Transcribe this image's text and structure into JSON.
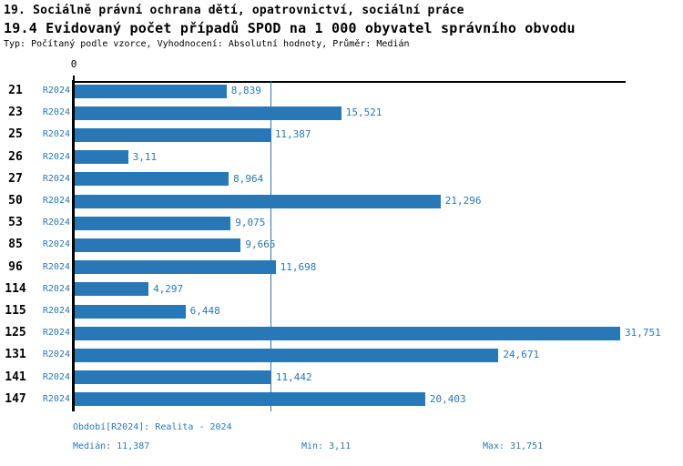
{
  "header": {
    "title_line1": "19. Sociálně právní ochrana dětí, opatrovnictví, sociální práce",
    "title_line2": "19.4 Evidovaný počet případů SPOD na 1 000 obyvatel správního obvodu",
    "subtitle": "Typ: Počítaný podle vzorce, Vyhodnocení: Absolutní hodnoty, Průměr: Medián"
  },
  "chart_data": {
    "type": "bar",
    "orientation": "horizontal",
    "title": "19.4 Evidovaný počet případů SPOD na 1 000 obyvatel správního obvodu",
    "series_label": "R2024",
    "categories": [
      "21",
      "23",
      "25",
      "26",
      "27",
      "50",
      "53",
      "85",
      "96",
      "114",
      "115",
      "125",
      "131",
      "141",
      "147"
    ],
    "values": [
      8.839,
      15.521,
      11.387,
      3.11,
      8.964,
      21.296,
      9.075,
      9.665,
      11.698,
      4.297,
      6.448,
      31.751,
      24.671,
      11.442,
      20.403
    ],
    "value_labels": [
      "8,839",
      "15,521",
      "11,387",
      "3,11",
      "8,964",
      "21,296",
      "9,075",
      "9,665",
      "11,698",
      "4,297",
      "6,448",
      "31,751",
      "24,671",
      "11,442",
      "20,403"
    ],
    "x_axis": {
      "origin_label": "0"
    },
    "xlim": [
      0,
      32.2
    ],
    "median_value": 11.387,
    "min_value": 3.11,
    "max_value": 31.751,
    "bar_color": "#2878b8",
    "grid": false,
    "legend": false
  },
  "footer": {
    "period": "Období[R2024]: Realita - 2024",
    "median": "Medián: 11,387",
    "min": "Min: 3,11",
    "max": "Max: 31,751"
  }
}
